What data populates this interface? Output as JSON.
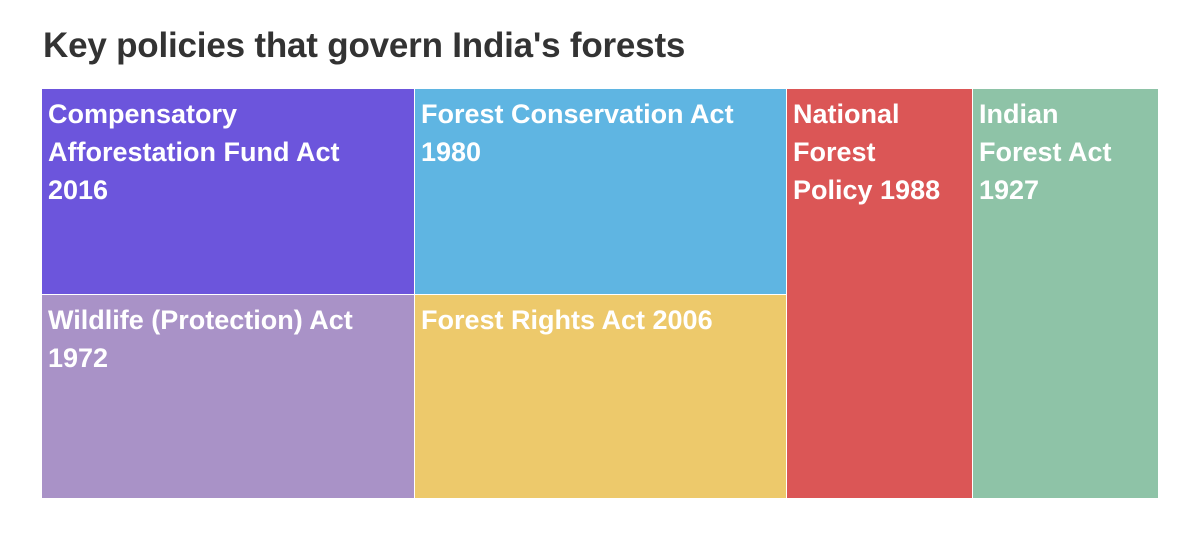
{
  "chart_data": {
    "type": "treemap",
    "title": "Key policies that govern India's forests",
    "items": [
      {
        "label": "Compensatory\nAfforestation Fund Act\n2016",
        "color": "#6c55dc"
      },
      {
        "label": "Forest Conservation Act\n1980",
        "color": "#5fb5e2"
      },
      {
        "label": "Wildlife (Protection) Act\n1972",
        "color": "#a992c7"
      },
      {
        "label": "Forest Rights Act 2006",
        "color": "#edc96b"
      },
      {
        "label": "National\nForest\nPolicy 1988",
        "color": "#db5656"
      },
      {
        "label": "Indian\nForest Act\n1927",
        "color": "#8ec3a7"
      }
    ]
  }
}
